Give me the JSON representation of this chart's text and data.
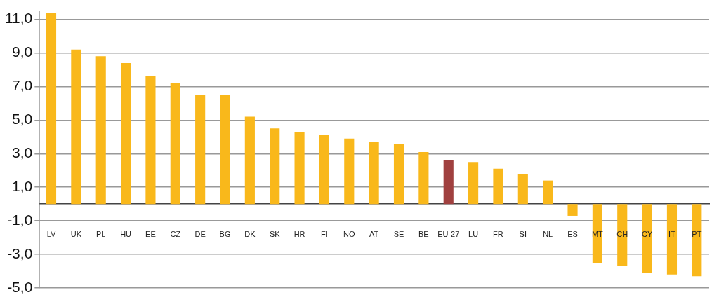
{
  "chart_data": {
    "type": "bar",
    "categories": [
      "LV",
      "UK",
      "PL",
      "HU",
      "EE",
      "CZ",
      "DE",
      "BG",
      "DK",
      "SK",
      "HR",
      "FI",
      "NO",
      "AT",
      "SE",
      "BE",
      "EU-27",
      "LU",
      "FR",
      "SI",
      "NL",
      "ES",
      "MT",
      "CH",
      "CY",
      "IT",
      "PT"
    ],
    "values": [
      11.4,
      9.2,
      8.8,
      8.4,
      7.6,
      7.2,
      6.5,
      6.5,
      5.2,
      4.5,
      4.3,
      4.1,
      3.9,
      3.7,
      3.6,
      3.1,
      2.6,
      2.5,
      2.1,
      1.8,
      1.4,
      -0.7,
      -3.5,
      -3.7,
      -4.1,
      -4.2,
      -4.3
    ],
    "colors": [
      "#f9b81b",
      "#f9b81b",
      "#f9b81b",
      "#f9b81b",
      "#f9b81b",
      "#f9b81b",
      "#f9b81b",
      "#f9b81b",
      "#f9b81b",
      "#f9b81b",
      "#f9b81b",
      "#f9b81b",
      "#f9b81b",
      "#f9b81b",
      "#f9b81b",
      "#f9b81b",
      "#a0403f",
      "#f9b81b",
      "#f9b81b",
      "#f9b81b",
      "#f9b81b",
      "#f9b81b",
      "#f9b81b",
      "#f9b81b",
      "#f9b81b",
      "#f9b81b",
      "#f9b81b"
    ],
    "ylim": [
      -5,
      11.5
    ],
    "yticks": [
      {
        "value": -5,
        "label": "-5,0"
      },
      {
        "value": -3,
        "label": "-3,0"
      },
      {
        "value": -1,
        "label": "-1,0"
      },
      {
        "value": 1,
        "label": "1,0"
      },
      {
        "value": 3,
        "label": "3,0"
      },
      {
        "value": 5,
        "label": "5,0"
      },
      {
        "value": 7,
        "label": "7,0"
      },
      {
        "value": 9,
        "label": "9,0"
      },
      {
        "value": 11,
        "label": "11,0"
      }
    ],
    "grid": "y"
  }
}
